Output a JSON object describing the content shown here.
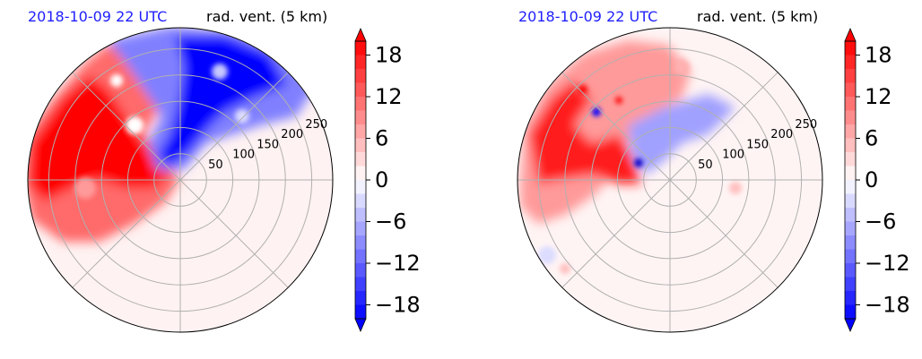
{
  "chart_data": [
    {
      "type": "heatmap",
      "projection": "polar",
      "date_label": "2018-10-09 22 UTC",
      "title": "rad. vent. (5 km)",
      "radial_ticks": [
        "50",
        "100",
        "150",
        "200",
        "250"
      ],
      "radial_tick_values": [
        50,
        100,
        150,
        200,
        250
      ],
      "rmax": 290,
      "spokes_deg": [
        0,
        45,
        90,
        135,
        180,
        225,
        270,
        315
      ],
      "grid": true,
      "colormap": "bwr",
      "clim": [
        -20,
        20
      ],
      "colorbar_ticks": [
        "18",
        "12",
        "6",
        "0",
        "−6",
        "−12",
        "−18"
      ],
      "colorbar_tick_values": [
        18,
        12,
        6,
        0,
        -6,
        -12,
        -18
      ],
      "colorbar_extend": "both",
      "colorbar_levels": 20,
      "field_summary": [
        {
          "sector": "northwest-west quadrant",
          "sign": "positive",
          "max_abs": 20
        },
        {
          "sector": "north-northeast quadrant",
          "sign": "negative",
          "max_abs": 20
        },
        {
          "sector": "southern half",
          "sign": "near zero",
          "max_abs": 2
        }
      ]
    },
    {
      "type": "heatmap",
      "projection": "polar",
      "date_label": "2018-10-09 22 UTC",
      "title": "rad. vent. (5 km)",
      "radial_ticks": [
        "50",
        "100",
        "150",
        "200",
        "250"
      ],
      "radial_tick_values": [
        50,
        100,
        150,
        200,
        250
      ],
      "rmax": 290,
      "spokes_deg": [
        0,
        45,
        90,
        135,
        180,
        225,
        270,
        315
      ],
      "grid": true,
      "colormap": "bwr",
      "clim": [
        -20,
        20
      ],
      "colorbar_ticks": [
        "18",
        "12",
        "6",
        "0",
        "−6",
        "−12",
        "−18"
      ],
      "colorbar_tick_values": [
        18,
        12,
        6,
        0,
        -6,
        -12,
        -18
      ],
      "colorbar_extend": "both",
      "colorbar_levels": 20,
      "field_summary": [
        {
          "sector": "western edge",
          "sign": "positive",
          "max_abs": 20
        },
        {
          "sector": "north-northwest",
          "sign": "mixed",
          "max_abs": 14
        },
        {
          "sector": "southern half",
          "sign": "near zero",
          "max_abs": 2
        }
      ]
    }
  ],
  "colors": {
    "date_text": "#1f1fff",
    "grid": "#b0b0b0",
    "positive": "#ff0000",
    "negative": "#0000ff",
    "background_field": "#fff2f2"
  }
}
